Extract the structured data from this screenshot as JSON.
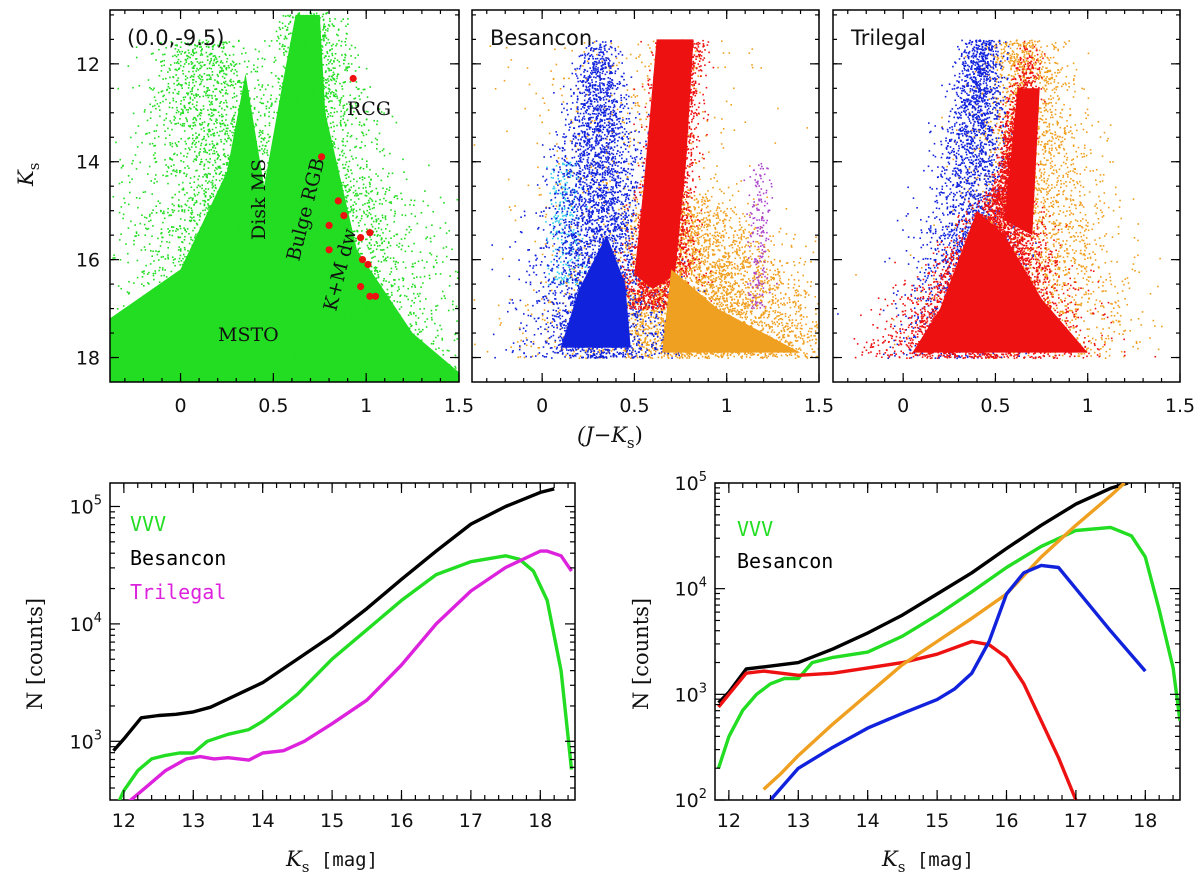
{
  "colors": {
    "green": "#22dd22",
    "black": "#000000",
    "magenta": "#dd22dd",
    "red": "#ee1111",
    "blue": "#1122dd",
    "orange": "#f0a020",
    "cyan": "#33ccee",
    "purple": "#aa44cc"
  },
  "chart_data": [
    {
      "type": "scatter",
      "panel": "cmd-vvv",
      "corner_label": "(0.0,-9.5)",
      "xlim": [
        -0.38,
        1.5
      ],
      "ylim": [
        18.5,
        10.9
      ],
      "xticks": [
        0,
        0.5,
        1,
        1.5
      ],
      "xticklabels": [
        "0",
        "0.5",
        "1",
        "1.5"
      ],
      "yticks": [
        12,
        14,
        16,
        18
      ],
      "yticklabels": [
        "12",
        "14",
        "16",
        "18"
      ],
      "ylabel": "K",
      "ylabel_sub": "s",
      "annotations": [
        "Disk MS",
        "Bulge RGB",
        "RCG",
        "K+M dw",
        "MSTO"
      ],
      "red_points": [
        [
          0.93,
          12.3
        ],
        [
          0.76,
          13.9
        ],
        [
          0.85,
          14.8
        ],
        [
          0.8,
          15.3
        ],
        [
          0.88,
          15.1
        ],
        [
          0.97,
          15.55
        ],
        [
          1.02,
          15.45
        ],
        [
          0.98,
          16.0
        ],
        [
          1.01,
          16.1
        ],
        [
          0.8,
          15.8
        ],
        [
          0.97,
          16.55
        ],
        [
          1.02,
          16.75
        ],
        [
          1.05,
          16.75
        ]
      ]
    },
    {
      "type": "scatter",
      "panel": "cmd-besancon",
      "corner_label": "Besancon",
      "xlim": [
        -0.38,
        1.5
      ],
      "ylim": [
        18.5,
        10.9
      ],
      "xticks": [
        0,
        0.5,
        1,
        1.5
      ],
      "xticklabels": [
        "0",
        "0.5",
        "1",
        "1.5"
      ],
      "yticks": [
        12,
        14,
        16,
        18
      ]
    },
    {
      "type": "scatter",
      "panel": "cmd-trilegal",
      "corner_label": "Trilegal",
      "xlim": [
        -0.38,
        1.5
      ],
      "ylim": [
        18.5,
        10.9
      ],
      "xticks": [
        0,
        0.5,
        1,
        1.5
      ],
      "xticklabels": [
        "0",
        "0.5",
        "1",
        "1.5"
      ],
      "yticks": [
        12,
        14,
        16,
        18
      ]
    },
    {
      "type": "line",
      "panel": "lf-left",
      "xlim": [
        11.8,
        18.5
      ],
      "ylim_log10": [
        2.5,
        5.2
      ],
      "xticks": [
        12,
        13,
        14,
        15,
        16,
        17,
        18
      ],
      "xticklabels": [
        "12",
        "13",
        "14",
        "15",
        "16",
        "17",
        "18"
      ],
      "yticks_log10": [
        3,
        4,
        5
      ],
      "ylabel": "N [counts]",
      "xlabel": "K",
      "xlabel_sub": "s",
      "xlabel_unit": " [mag]",
      "legend": [
        "VVV",
        "Besancon",
        "Trilegal"
      ],
      "series": [
        {
          "name": "VVV",
          "color": "green",
          "x": [
            11.9,
            12.0,
            12.2,
            12.4,
            12.6,
            12.8,
            13.0,
            13.2,
            13.5,
            13.8,
            14.0,
            14.2,
            14.5,
            15.0,
            15.5,
            16.0,
            16.5,
            17.0,
            17.5,
            17.7,
            17.9,
            18.1,
            18.3,
            18.45
          ],
          "log10y": [
            2.45,
            2.58,
            2.75,
            2.85,
            2.88,
            2.9,
            2.9,
            3.0,
            3.06,
            3.1,
            3.17,
            3.26,
            3.4,
            3.7,
            3.95,
            4.2,
            4.42,
            4.53,
            4.58,
            4.55,
            4.45,
            4.2,
            3.6,
            2.76
          ]
        },
        {
          "name": "Besancon",
          "color": "black",
          "x": [
            11.85,
            12.0,
            12.25,
            12.5,
            12.75,
            13.0,
            13.25,
            13.5,
            13.75,
            14.0,
            14.25,
            14.5,
            15.0,
            15.5,
            16.0,
            16.5,
            17.0,
            17.5,
            18.0,
            18.2
          ],
          "log10y": [
            2.92,
            3.02,
            3.2,
            3.22,
            3.23,
            3.25,
            3.29,
            3.36,
            3.43,
            3.5,
            3.6,
            3.7,
            3.9,
            4.13,
            4.38,
            4.62,
            4.85,
            5.0,
            5.12,
            5.15
          ]
        },
        {
          "name": "Trilegal",
          "color": "magenta",
          "x": [
            11.9,
            12.0,
            12.3,
            12.6,
            12.9,
            13.1,
            13.3,
            13.5,
            13.8,
            14.0,
            14.3,
            14.6,
            15.0,
            15.5,
            16.0,
            16.5,
            17.0,
            17.5,
            18.0,
            18.1,
            18.3,
            18.45
          ],
          "log10y": [
            2.4,
            2.45,
            2.6,
            2.75,
            2.85,
            2.87,
            2.85,
            2.86,
            2.84,
            2.9,
            2.92,
            3.0,
            3.15,
            3.35,
            3.65,
            4.0,
            4.28,
            4.48,
            4.62,
            4.62,
            4.58,
            4.45
          ]
        }
      ]
    },
    {
      "type": "line",
      "panel": "lf-right",
      "xlim": [
        11.8,
        18.5
      ],
      "ylim_log10": [
        2.0,
        5.0
      ],
      "xticks": [
        12,
        13,
        14,
        15,
        16,
        17,
        18
      ],
      "xticklabels": [
        "12",
        "13",
        "14",
        "15",
        "16",
        "17",
        "18"
      ],
      "yticks_log10": [
        2,
        3,
        4,
        5
      ],
      "ylabel": "N [counts]",
      "xlabel": "K",
      "xlabel_sub": "s",
      "xlabel_unit": " [mag]",
      "legend": [
        "VVV",
        "Besancon"
      ],
      "series": [
        {
          "name": "VVV",
          "color": "green",
          "x": [
            11.85,
            12.0,
            12.2,
            12.4,
            12.6,
            12.8,
            13.0,
            13.2,
            13.5,
            14.0,
            14.5,
            15.0,
            15.5,
            16.0,
            16.5,
            17.0,
            17.5,
            17.8,
            18.0,
            18.2,
            18.4,
            18.5
          ],
          "log10y": [
            2.3,
            2.6,
            2.85,
            3.0,
            3.1,
            3.15,
            3.15,
            3.3,
            3.35,
            3.4,
            3.55,
            3.75,
            3.97,
            4.2,
            4.4,
            4.55,
            4.58,
            4.5,
            4.3,
            3.8,
            3.25,
            2.75
          ]
        },
        {
          "name": "Besancon",
          "color": "black",
          "x": [
            11.85,
            12.0,
            12.25,
            12.5,
            13.0,
            13.5,
            14.0,
            14.5,
            15.0,
            15.5,
            16.0,
            16.5,
            17.0,
            17.5,
            17.75
          ],
          "log10y": [
            2.92,
            3.02,
            3.24,
            3.26,
            3.3,
            3.43,
            3.58,
            3.75,
            3.95,
            4.15,
            4.38,
            4.6,
            4.8,
            4.95,
            5.0
          ]
        },
        {
          "color": "red",
          "x": [
            11.85,
            12.0,
            12.25,
            12.5,
            13.0,
            13.5,
            14.0,
            14.5,
            15.0,
            15.5,
            15.75,
            16.0,
            16.25,
            16.5,
            16.75,
            17.0
          ],
          "log10y": [
            2.88,
            3.0,
            3.2,
            3.22,
            3.18,
            3.2,
            3.25,
            3.3,
            3.38,
            3.5,
            3.47,
            3.35,
            3.1,
            2.75,
            2.4,
            2.0
          ]
        },
        {
          "color": "orange",
          "x": [
            12.5,
            12.75,
            13.0,
            13.5,
            14.0,
            14.5,
            15.0,
            15.5,
            16.0,
            16.5,
            17.0,
            17.5,
            17.7
          ],
          "log10y": [
            2.1,
            2.25,
            2.42,
            2.72,
            3.0,
            3.28,
            3.5,
            3.72,
            3.95,
            4.3,
            4.6,
            4.88,
            5.0
          ]
        },
        {
          "color": "blue",
          "x": [
            12.6,
            13.0,
            13.5,
            14.0,
            14.5,
            15.0,
            15.25,
            15.5,
            15.75,
            16.0,
            16.25,
            16.5,
            16.75,
            17.0,
            17.5,
            18.0
          ],
          "log10y": [
            2.0,
            2.3,
            2.5,
            2.68,
            2.82,
            2.95,
            3.05,
            3.2,
            3.5,
            3.95,
            4.15,
            4.22,
            4.2,
            4.0,
            3.6,
            3.22
          ]
        }
      ]
    }
  ],
  "shared_xlabel": "(J−K",
  "shared_xlabel_sub": "s",
  "shared_xlabel_close": ")"
}
